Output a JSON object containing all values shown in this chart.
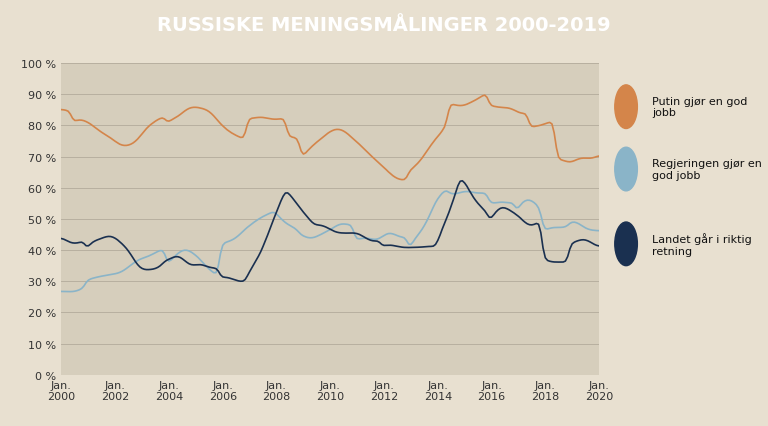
{
  "title": "RUSSISKE MENINGSMÅLINGER 2000-2019",
  "title_bg": "#111111",
  "title_color": "#ffffff",
  "plot_bg": "#d6cebc",
  "outer_bg": "#e8e0d0",
  "legend_bg": "#e8e0d0",
  "line_putin_color": "#d4854a",
  "line_gov_color": "#8ab4c8",
  "line_dir_color": "#1a3050",
  "ylim": [
    0,
    100
  ],
  "yticks": [
    0,
    10,
    20,
    30,
    40,
    50,
    60,
    70,
    80,
    90,
    100
  ],
  "ytick_labels": [
    "0 %",
    "10 %",
    "20 %",
    "30 %",
    "40 %",
    "50 %",
    "60 %",
    "70 %",
    "80 %",
    "90 %",
    "100 %"
  ],
  "xtick_years": [
    2000,
    2002,
    2004,
    2006,
    2008,
    2010,
    2012,
    2014,
    2016,
    2018,
    2020
  ],
  "legend_labels": [
    "Putin gjør en god jobb",
    "Regjeringen gjør en\ngod jobb",
    "Landet går i riktig\nretning"
  ],
  "legend_colors": [
    "#d4854a",
    "#8ab4c8",
    "#1a3050"
  ]
}
